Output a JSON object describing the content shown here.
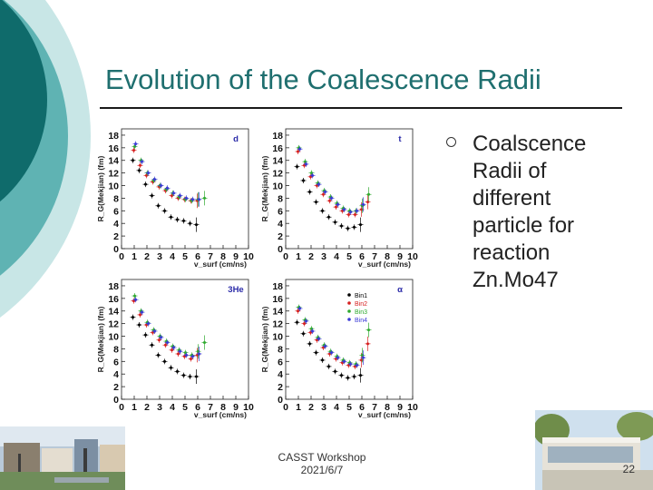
{
  "slide": {
    "title": "Evolution of the Coalescence Radii",
    "bullet": "Coalscence Radii of different particle for reaction Zn.Mo47",
    "footer_line1": "CASST Workshop",
    "footer_line2": "2021/6/7",
    "page_number": "22"
  },
  "colors": {
    "teal_dark": "#0f6b6b",
    "teal_mid": "#5fb3b3",
    "teal_light": "#c8e6e6",
    "title": "#1f6f6f",
    "bin1": "#000000",
    "bin2": "#d62020",
    "bin3": "#2faa2f",
    "bin4": "#3a3ad6"
  },
  "chart_data": [
    {
      "type": "scatter",
      "title": "",
      "particle_label": "d",
      "xlabel": "v_surf (cm/ns)",
      "ylabel": "R_G(Mekjian) (fm)",
      "x_ticks": [
        "0",
        "1",
        "2",
        "3",
        "4",
        "5",
        "6",
        "7",
        "8",
        "9",
        "10"
      ],
      "y_ticks": [
        "0",
        "2",
        "4",
        "6",
        "8",
        "10",
        "12",
        "14",
        "16",
        "18"
      ],
      "xlim": [
        0,
        10
      ],
      "ylim": [
        0,
        19
      ],
      "series": [
        {
          "name": "Bin1",
          "x": [
            1.0,
            1.5,
            2.0,
            2.5,
            3.0,
            3.5,
            4.0,
            4.5,
            5.0,
            5.5,
            6.0
          ],
          "y": [
            14.0,
            12.4,
            10.2,
            8.4,
            6.8,
            6.0,
            5.0,
            4.6,
            4.4,
            4.0,
            3.8
          ]
        },
        {
          "name": "Bin2",
          "x": [
            1.0,
            1.5,
            2.0,
            2.5,
            3.0,
            3.5,
            4.0,
            4.5,
            5.0,
            5.5,
            6.0
          ],
          "y": [
            15.6,
            13.2,
            11.6,
            10.6,
            9.8,
            9.2,
            8.4,
            8.0,
            7.8,
            7.6,
            7.6
          ]
        },
        {
          "name": "Bin3",
          "x": [
            1.0,
            1.5,
            2.0,
            2.5,
            3.0,
            3.5,
            4.0,
            4.5,
            5.0,
            5.5,
            6.0,
            6.5
          ],
          "y": [
            16.2,
            14.0,
            12.0,
            10.8,
            10.0,
            9.4,
            8.8,
            8.2,
            7.8,
            7.6,
            7.8,
            8.0
          ]
        },
        {
          "name": "Bin4",
          "x": [
            1.0,
            1.5,
            2.0,
            2.5,
            3.0,
            3.5,
            4.0,
            4.5,
            5.0,
            5.5,
            6.0
          ],
          "y": [
            16.6,
            13.8,
            12.0,
            11.0,
            10.0,
            9.6,
            8.8,
            8.4,
            8.0,
            7.8,
            7.8
          ]
        }
      ]
    },
    {
      "type": "scatter",
      "title": "",
      "particle_label": "t",
      "xlabel": "v_surf (cm/ns)",
      "ylabel": "R_G(Mekjian) (fm)",
      "x_ticks": [
        "0",
        "1",
        "2",
        "3",
        "4",
        "5",
        "6",
        "7",
        "8",
        "9",
        "10"
      ],
      "y_ticks": [
        "0",
        "2",
        "4",
        "6",
        "8",
        "10",
        "12",
        "14",
        "16",
        "18"
      ],
      "xlim": [
        0,
        10
      ],
      "ylim": [
        0,
        19
      ],
      "series": [
        {
          "name": "Bin1",
          "x": [
            1.0,
            1.5,
            2.0,
            2.5,
            3.0,
            3.5,
            4.0,
            4.5,
            5.0,
            5.5,
            6.0
          ],
          "y": [
            13.0,
            10.8,
            9.0,
            7.4,
            6.0,
            5.0,
            4.2,
            3.6,
            3.2,
            3.4,
            3.8
          ]
        },
        {
          "name": "Bin2",
          "x": [
            1.0,
            1.5,
            2.0,
            2.5,
            3.0,
            3.5,
            4.0,
            4.5,
            5.0,
            5.5,
            6.0,
            6.5
          ],
          "y": [
            15.4,
            13.2,
            11.4,
            10.0,
            8.6,
            7.6,
            6.6,
            6.0,
            5.4,
            5.4,
            6.2,
            7.4
          ]
        },
        {
          "name": "Bin3",
          "x": [
            1.0,
            1.5,
            2.0,
            2.5,
            3.0,
            3.5,
            4.0,
            4.5,
            5.0,
            5.5,
            6.0,
            6.5
          ],
          "y": [
            16.0,
            13.8,
            12.0,
            10.4,
            9.2,
            8.2,
            7.2,
            6.4,
            6.0,
            6.0,
            6.8,
            8.6
          ]
        },
        {
          "name": "Bin4",
          "x": [
            1.0,
            1.5,
            2.0,
            2.5,
            3.0,
            3.5,
            4.0,
            4.5,
            5.0,
            5.5,
            6.0
          ],
          "y": [
            15.8,
            13.4,
            11.6,
            10.2,
            9.0,
            8.0,
            7.0,
            6.2,
            5.8,
            6.0,
            7.0
          ]
        }
      ]
    },
    {
      "type": "scatter",
      "title": "",
      "particle_label": "3He",
      "xlabel": "v_surf (cm/ns)",
      "ylabel": "R_G(Mekjian) (fm)",
      "x_ticks": [
        "0",
        "1",
        "2",
        "3",
        "4",
        "5",
        "6",
        "7",
        "8",
        "9",
        "10"
      ],
      "y_ticks": [
        "0",
        "2",
        "4",
        "6",
        "8",
        "10",
        "12",
        "14",
        "16",
        "18"
      ],
      "xlim": [
        0,
        10
      ],
      "ylim": [
        0,
        19
      ],
      "series": [
        {
          "name": "Bin1",
          "x": [
            1.0,
            1.5,
            2.0,
            2.5,
            3.0,
            3.5,
            4.0,
            4.5,
            5.0,
            5.5,
            6.0
          ],
          "y": [
            13.0,
            11.8,
            10.2,
            8.6,
            7.0,
            6.0,
            5.0,
            4.4,
            3.8,
            3.6,
            3.6
          ]
        },
        {
          "name": "Bin2",
          "x": [
            1.0,
            1.5,
            2.0,
            2.5,
            3.0,
            3.5,
            4.0,
            4.5,
            5.0,
            5.5,
            6.0
          ],
          "y": [
            15.6,
            13.4,
            11.8,
            10.6,
            9.4,
            8.6,
            7.8,
            7.2,
            6.8,
            6.4,
            7.0
          ]
        },
        {
          "name": "Bin3",
          "x": [
            1.0,
            1.5,
            2.0,
            2.5,
            3.0,
            3.5,
            4.0,
            4.5,
            5.0,
            5.5,
            6.0,
            6.5
          ],
          "y": [
            16.4,
            14.0,
            12.2,
            11.0,
            10.0,
            9.2,
            8.4,
            7.8,
            7.4,
            7.0,
            7.6,
            9.0
          ]
        },
        {
          "name": "Bin4",
          "x": [
            1.0,
            1.5,
            2.0,
            2.5,
            3.0,
            3.5,
            4.0,
            4.5,
            5.0,
            5.5,
            6.0
          ],
          "y": [
            15.8,
            13.8,
            12.0,
            10.8,
            9.8,
            9.0,
            8.2,
            7.6,
            7.0,
            6.8,
            7.2
          ]
        }
      ]
    },
    {
      "type": "scatter",
      "title": "",
      "particle_label": "α",
      "xlabel": "v_surf (cm/ns)",
      "ylabel": "R_G(Mekjian) (fm)",
      "x_ticks": [
        "0",
        "1",
        "2",
        "3",
        "4",
        "5",
        "6",
        "7",
        "8",
        "9",
        "10"
      ],
      "y_ticks": [
        "0",
        "2",
        "4",
        "6",
        "8",
        "10",
        "12",
        "14",
        "16",
        "18"
      ],
      "xlim": [
        0,
        10
      ],
      "ylim": [
        0,
        19
      ],
      "legend": [
        "Bin1",
        "Bin2",
        "Bin3",
        "Bin4"
      ],
      "legend_position": "top-right",
      "series": [
        {
          "name": "Bin1",
          "x": [
            1.0,
            1.5,
            2.0,
            2.5,
            3.0,
            3.5,
            4.0,
            4.5,
            5.0,
            5.5,
            6.0
          ],
          "y": [
            12.2,
            10.4,
            8.8,
            7.4,
            6.2,
            5.2,
            4.4,
            3.8,
            3.4,
            3.6,
            3.8
          ]
        },
        {
          "name": "Bin2",
          "x": [
            1.0,
            1.5,
            2.0,
            2.5,
            3.0,
            3.5,
            4.0,
            4.5,
            5.0,
            5.5,
            6.0,
            6.5
          ],
          "y": [
            14.0,
            12.0,
            10.6,
            9.4,
            8.2,
            7.2,
            6.4,
            5.8,
            5.4,
            5.2,
            6.2,
            8.8
          ]
        },
        {
          "name": "Bin3",
          "x": [
            1.0,
            1.5,
            2.0,
            2.5,
            3.0,
            3.5,
            4.0,
            4.5,
            5.0,
            5.5,
            6.0,
            6.5
          ],
          "y": [
            14.6,
            12.6,
            11.2,
            9.8,
            8.6,
            7.6,
            6.8,
            6.2,
            5.8,
            5.6,
            7.0,
            11.0
          ]
        },
        {
          "name": "Bin4",
          "x": [
            1.0,
            1.5,
            2.0,
            2.5,
            3.0,
            3.5,
            4.0,
            4.5,
            5.0,
            5.5,
            6.0
          ],
          "y": [
            14.4,
            12.4,
            10.8,
            9.6,
            8.4,
            7.4,
            6.6,
            6.0,
            5.6,
            5.4,
            6.6
          ]
        }
      ]
    }
  ]
}
